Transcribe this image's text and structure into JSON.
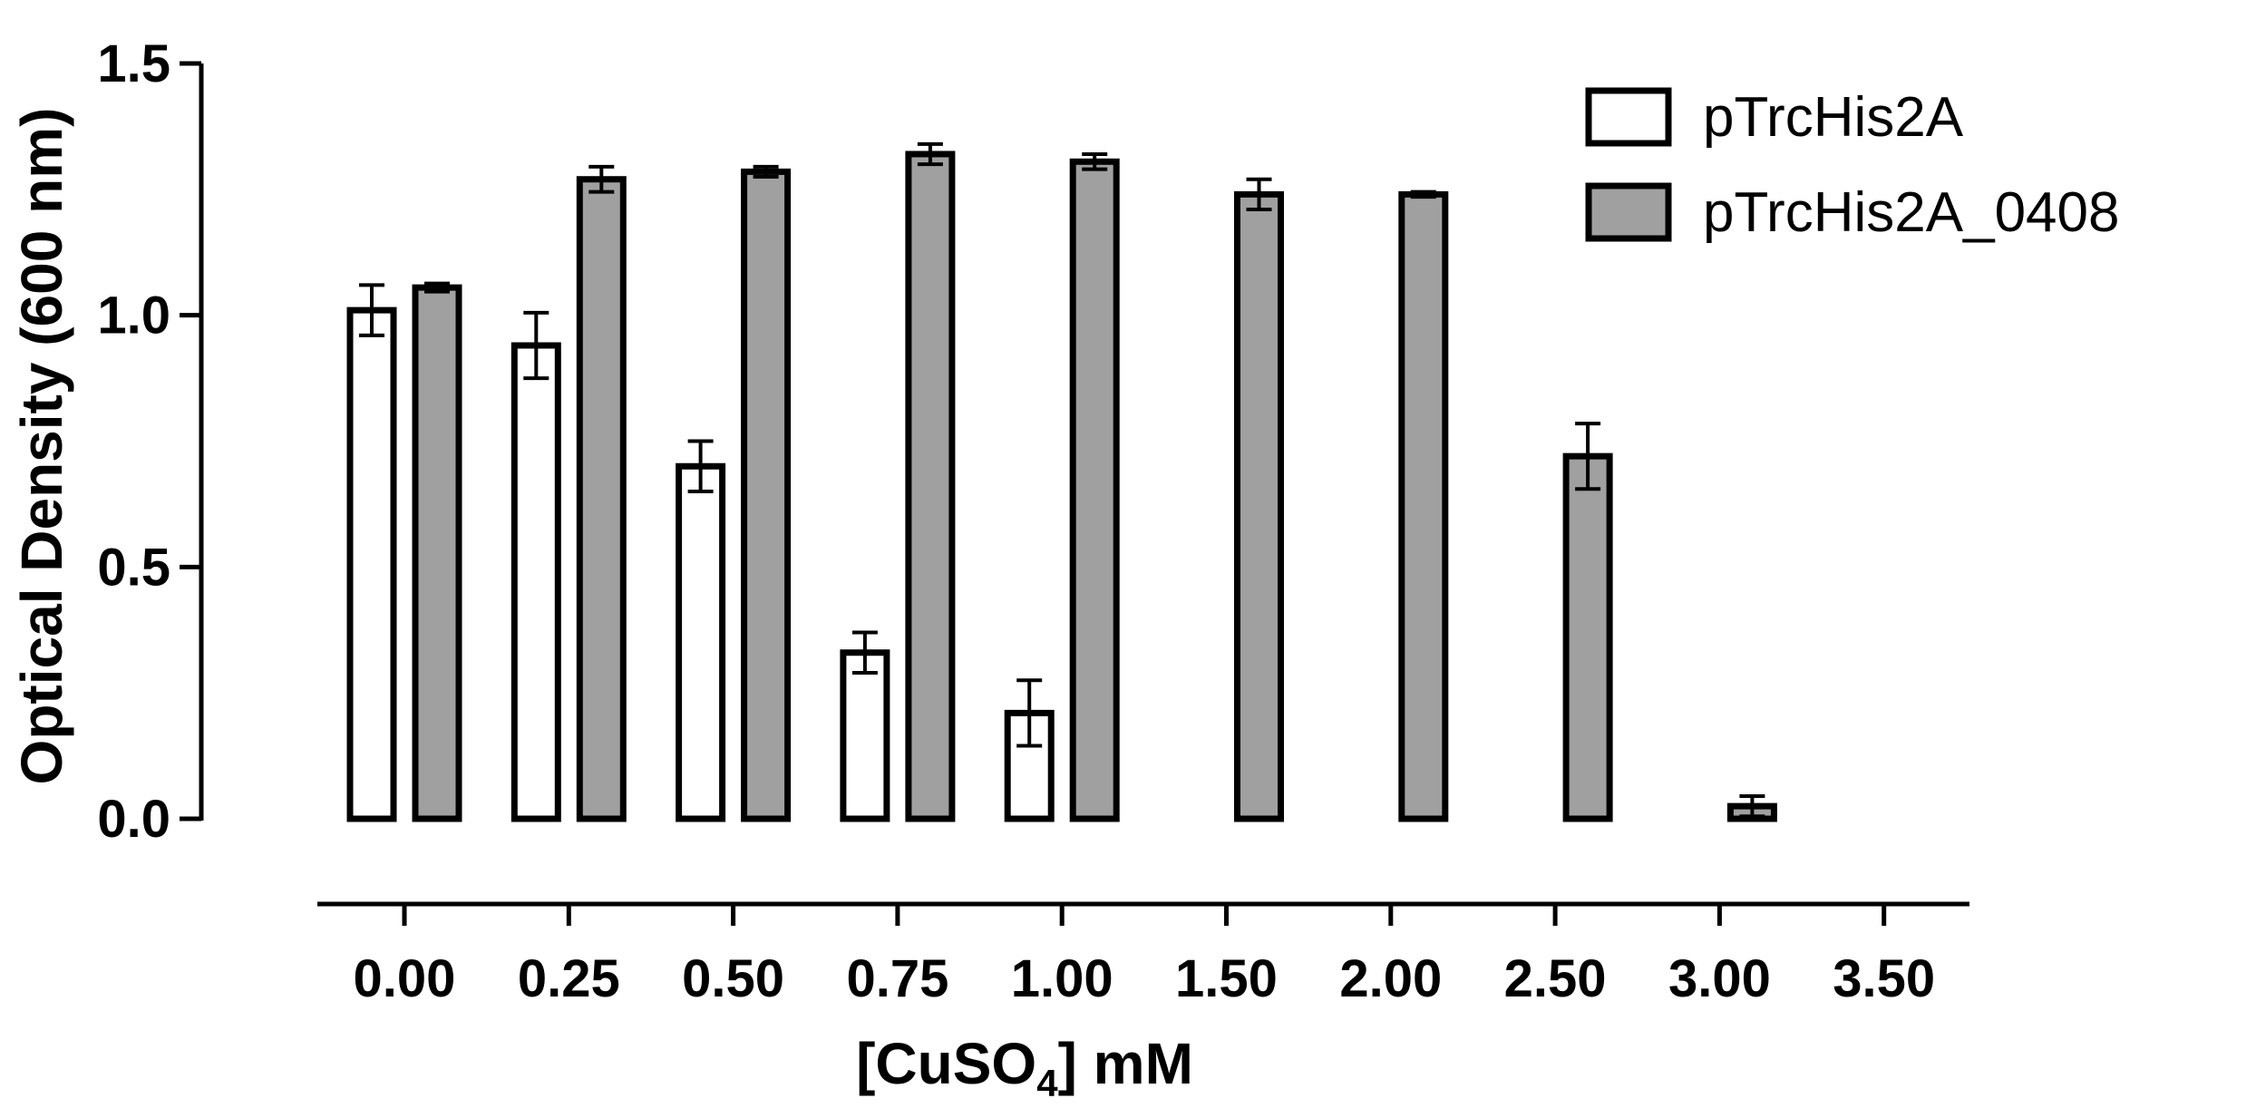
{
  "chart_data": {
    "type": "bar",
    "title": "",
    "xlabel_prefix": "[CuSO",
    "xlabel_sub": "4",
    "xlabel_suffix": "] mM",
    "ylabel": "Optical Density (600 nm)",
    "ylim": [
      0,
      1.5
    ],
    "yticks": [
      "0.0",
      "0.5",
      "1.0",
      "1.5"
    ],
    "categories": [
      "0.00",
      "0.25",
      "0.50",
      "0.75",
      "1.00",
      "1.50",
      "2.00",
      "2.50",
      "3.00",
      "3.50"
    ],
    "legend_position": "top-right",
    "series": [
      {
        "name": "pTrcHis2A",
        "color": "#ffffff",
        "values": [
          1.01,
          0.94,
          0.7,
          0.33,
          0.21,
          null,
          null,
          null,
          null,
          null
        ],
        "errors": [
          0.05,
          0.065,
          0.05,
          0.04,
          0.065,
          null,
          null,
          null,
          null,
          null
        ]
      },
      {
        "name": "pTrcHis2A_0408",
        "color": "#a0a0a0",
        "values": [
          1.055,
          1.27,
          1.285,
          1.32,
          1.305,
          1.24,
          1.24,
          0.72,
          0.025,
          null
        ],
        "errors": [
          0.008,
          0.025,
          0.01,
          0.02,
          0.015,
          0.03,
          0.005,
          0.065,
          0.02,
          null
        ]
      }
    ]
  }
}
